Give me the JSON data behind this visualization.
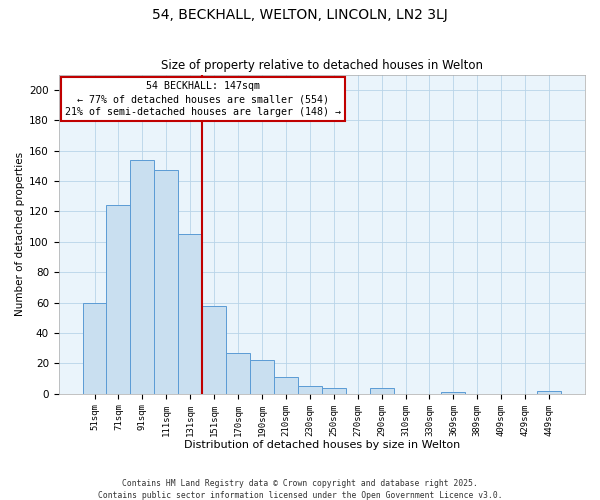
{
  "title": "54, BECKHALL, WELTON, LINCOLN, LN2 3LJ",
  "subtitle": "Size of property relative to detached houses in Welton",
  "xlabel": "Distribution of detached houses by size in Welton",
  "ylabel": "Number of detached properties",
  "bar_labels": [
    "51sqm",
    "71sqm",
    "91sqm",
    "111sqm",
    "131sqm",
    "151sqm",
    "170sqm",
    "190sqm",
    "210sqm",
    "230sqm",
    "250sqm",
    "270sqm",
    "290sqm",
    "310sqm",
    "330sqm",
    "369sqm",
    "389sqm",
    "409sqm",
    "429sqm",
    "449sqm"
  ],
  "bar_values": [
    60,
    124,
    154,
    147,
    105,
    58,
    27,
    22,
    11,
    5,
    4,
    0,
    4,
    0,
    0,
    1,
    0,
    0,
    0,
    2
  ],
  "bar_color": "#c9dff0",
  "bar_edge_color": "#5b9bd5",
  "vline_index": 5,
  "vline_color": "#c00000",
  "annotation_line1": "54 BECKHALL: 147sqm",
  "annotation_line2": "← 77% of detached houses are smaller (554)",
  "annotation_line3": "21% of semi-detached houses are larger (148) →",
  "ylim": [
    0,
    210
  ],
  "yticks": [
    0,
    20,
    40,
    60,
    80,
    100,
    120,
    140,
    160,
    180,
    200
  ],
  "background_color": "#eaf4fb",
  "grid_color": "#b8d4e8",
  "footer_line1": "Contains HM Land Registry data © Crown copyright and database right 2025.",
  "footer_line2": "Contains public sector information licensed under the Open Government Licence v3.0."
}
